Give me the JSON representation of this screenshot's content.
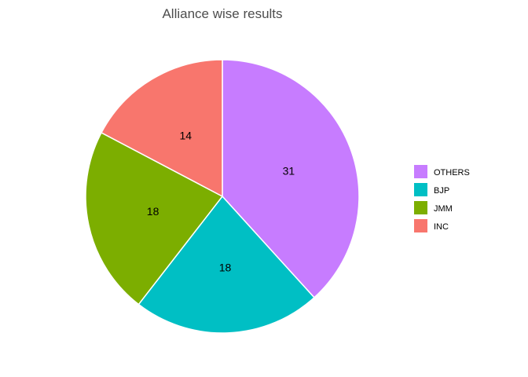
{
  "chart_data": {
    "type": "pie",
    "title": "Alliance wise results",
    "start": "top",
    "direction": "clockwise",
    "slices": [
      {
        "label": "OTHERS",
        "value": 31,
        "color": "#C77CFF"
      },
      {
        "label": "BJP",
        "value": 18,
        "color": "#00BFC4"
      },
      {
        "label": "JMM",
        "value": 18,
        "color": "#7CAE00"
      },
      {
        "label": "INC",
        "value": 14,
        "color": "#F8766D"
      }
    ],
    "legend_position": "right"
  }
}
